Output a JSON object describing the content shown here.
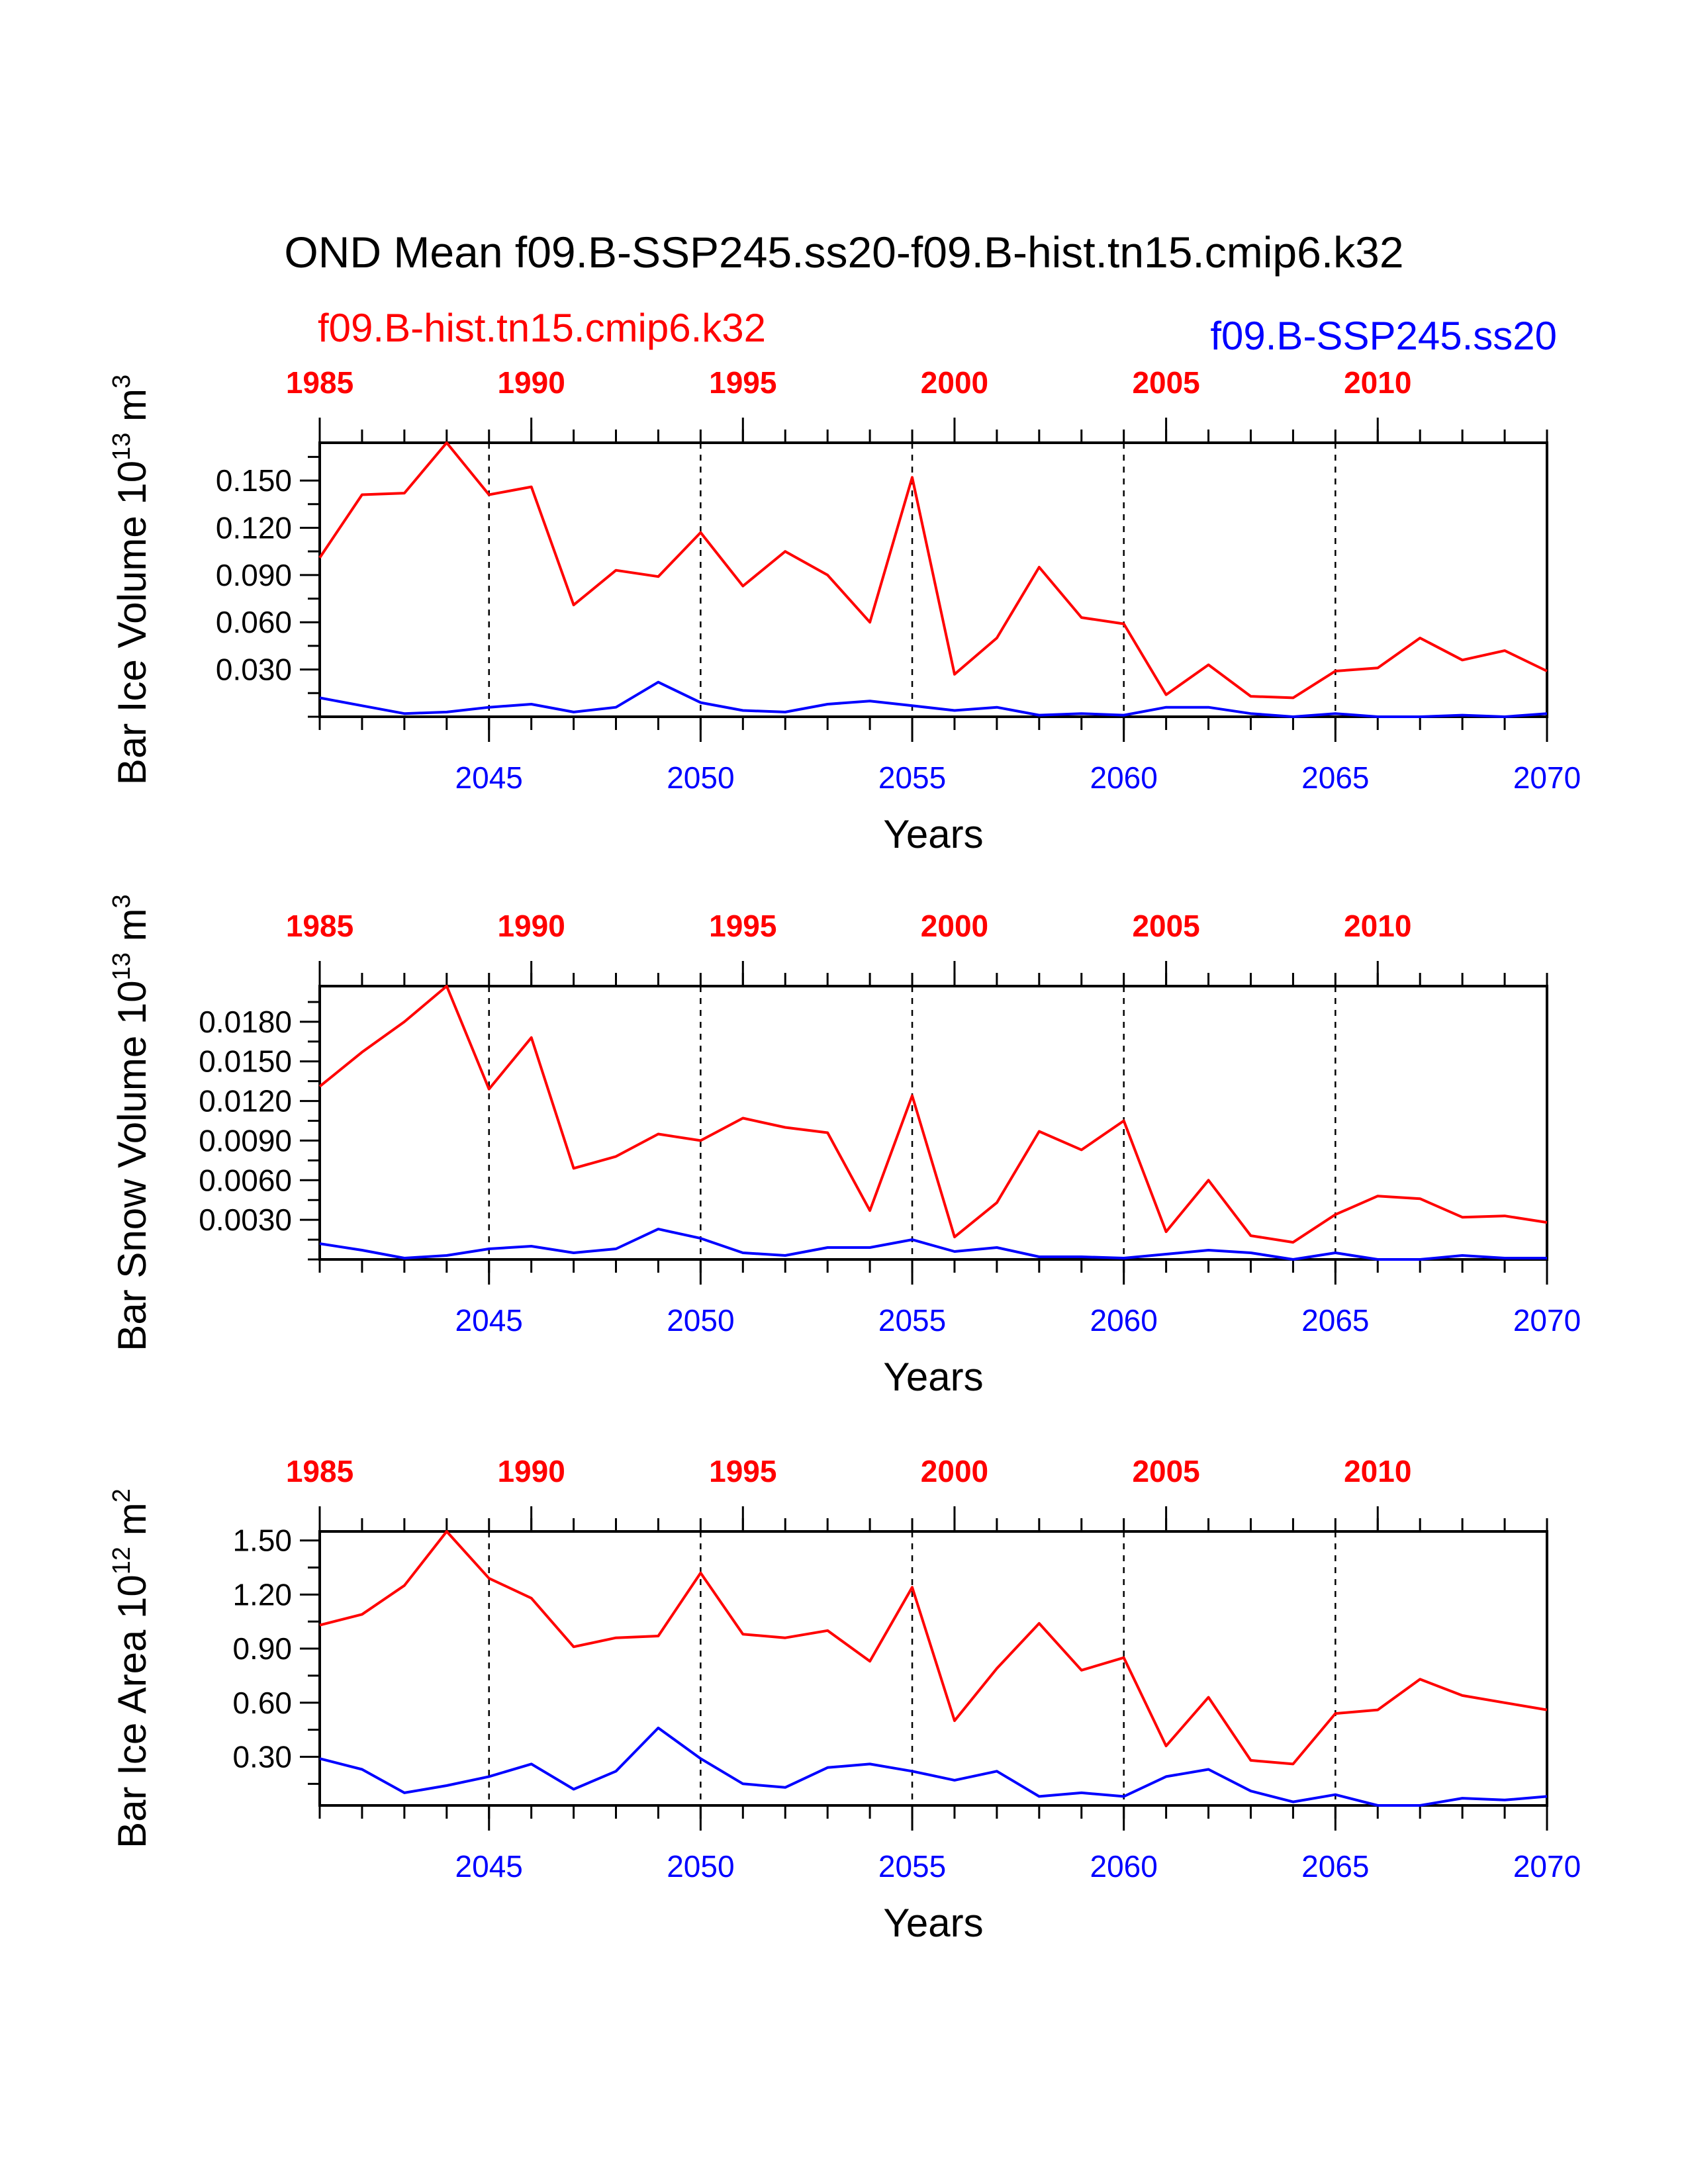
{
  "title": "OND Mean f09.B-SSP245.ss20-f09.B-hist.tn15.cmip6.k32",
  "legend": {
    "hist_label": "f09.B-hist.tn15.cmip6.k32",
    "ssp_label": "f09.B-SSP245.ss20"
  },
  "colors": {
    "hist": "#ff0000",
    "ssp": "#0000ff",
    "axis": "#000000"
  },
  "chart_data": [
    {
      "type": "line",
      "ylabel": "Bar Ice Volume 10",
      "ylabel_exp": "13",
      "ylabel_unit": " m",
      "ylabel_unit_exp": "3",
      "xlabel": "Years",
      "ylim": [
        0,
        0.174
      ],
      "yticks": [
        0.03,
        0.06,
        0.09,
        0.12,
        0.15
      ],
      "ytick_labels": [
        "0.030",
        "0.060",
        "0.090",
        "0.120",
        "0.150"
      ],
      "grid": "dashed vertical at every 5 years",
      "x_bottom": [
        2041,
        2042,
        2043,
        2044,
        2045,
        2046,
        2047,
        2048,
        2049,
        2050,
        2051,
        2052,
        2053,
        2054,
        2055,
        2056,
        2057,
        2058,
        2059,
        2060,
        2061,
        2062,
        2063,
        2064,
        2065,
        2066,
        2067,
        2068,
        2069,
        2070
      ],
      "x_top": [
        1985,
        1986,
        1987,
        1988,
        1989,
        1990,
        1991,
        1992,
        1993,
        1994,
        1995,
        1996,
        1997,
        1998,
        1999,
        2000,
        2001,
        2002,
        2003,
        2004,
        2005,
        2006,
        2007,
        2008,
        2009,
        2010,
        2011,
        2012,
        2013,
        2014
      ],
      "bottom_ticks": [
        2045,
        2050,
        2055,
        2060,
        2065,
        2070
      ],
      "top_ticks": [
        1985,
        1990,
        1995,
        2000,
        2005,
        2010
      ],
      "series": [
        {
          "name": "f09.B-hist.tn15.cmip6.k32",
          "color": "#ff0000",
          "values": [
            0.101,
            0.141,
            0.142,
            0.174,
            0.141,
            0.146,
            0.071,
            0.093,
            0.089,
            0.117,
            0.083,
            0.105,
            0.09,
            0.06,
            0.152,
            0.027,
            0.05,
            0.095,
            0.063,
            0.059,
            0.014,
            0.033,
            0.013,
            0.012,
            0.029,
            0.031,
            0.05,
            0.036,
            0.042,
            0.029
          ]
        },
        {
          "name": "f09.B-SSP245.ss20",
          "color": "#0000ff",
          "values": [
            0.012,
            0.007,
            0.002,
            0.003,
            0.006,
            0.008,
            0.003,
            0.006,
            0.022,
            0.009,
            0.004,
            0.003,
            0.008,
            0.01,
            0.007,
            0.004,
            0.006,
            0.001,
            0.002,
            0.001,
            0.006,
            0.006,
            0.002,
            0.0,
            0.002,
            0.0,
            0.0,
            0.001,
            0.0,
            0.002
          ]
        }
      ]
    },
    {
      "type": "line",
      "ylabel": "Bar Snow Volume 10",
      "ylabel_exp": "13",
      "ylabel_unit": " m",
      "ylabel_unit_exp": "3",
      "xlabel": "Years",
      "ylim": [
        0,
        0.0207
      ],
      "yticks": [
        0.003,
        0.006,
        0.009,
        0.012,
        0.015,
        0.018
      ],
      "ytick_labels": [
        "0.0030",
        "0.0060",
        "0.0090",
        "0.0120",
        "0.0150",
        "0.0180"
      ],
      "grid": "dashed vertical at every 5 years",
      "x_bottom": [
        2041,
        2042,
        2043,
        2044,
        2045,
        2046,
        2047,
        2048,
        2049,
        2050,
        2051,
        2052,
        2053,
        2054,
        2055,
        2056,
        2057,
        2058,
        2059,
        2060,
        2061,
        2062,
        2063,
        2064,
        2065,
        2066,
        2067,
        2068,
        2069,
        2070
      ],
      "x_top": [
        1985,
        1986,
        1987,
        1988,
        1989,
        1990,
        1991,
        1992,
        1993,
        1994,
        1995,
        1996,
        1997,
        1998,
        1999,
        2000,
        2001,
        2002,
        2003,
        2004,
        2005,
        2006,
        2007,
        2008,
        2009,
        2010,
        2011,
        2012,
        2013,
        2014
      ],
      "bottom_ticks": [
        2045,
        2050,
        2055,
        2060,
        2065,
        2070
      ],
      "top_ticks": [
        1985,
        1990,
        1995,
        2000,
        2005,
        2010
      ],
      "series": [
        {
          "name": "f09.B-hist.tn15.cmip6.k32",
          "color": "#ff0000",
          "values": [
            0.0131,
            0.0157,
            0.018,
            0.0207,
            0.0129,
            0.0168,
            0.0069,
            0.0078,
            0.0095,
            0.009,
            0.0107,
            0.01,
            0.0096,
            0.0037,
            0.0124,
            0.0017,
            0.0043,
            0.0097,
            0.0083,
            0.0105,
            0.0021,
            0.006,
            0.0018,
            0.0013,
            0.0034,
            0.0048,
            0.0046,
            0.0032,
            0.0033,
            0.0028
          ]
        },
        {
          "name": "f09.B-SSP245.ss20",
          "color": "#0000ff",
          "values": [
            0.0012,
            0.0007,
            0.0001,
            0.0003,
            0.0008,
            0.001,
            0.0005,
            0.0008,
            0.0023,
            0.0016,
            0.0005,
            0.0003,
            0.0009,
            0.0009,
            0.0015,
            0.0006,
            0.0009,
            0.0002,
            0.0002,
            0.0001,
            0.0004,
            0.0007,
            0.0005,
            0.0,
            0.0005,
            0.0,
            0.0,
            0.0003,
            0.0001,
            0.0001
          ]
        }
      ]
    },
    {
      "type": "line",
      "ylabel": "Bar Ice Area 10",
      "ylabel_exp": "12",
      "ylabel_unit": " m",
      "ylabel_unit_exp": "2",
      "xlabel": "Years",
      "ylim": [
        0.03,
        1.55
      ],
      "yticks": [
        0.3,
        0.6,
        0.9,
        1.2,
        1.5
      ],
      "ytick_labels": [
        "0.30",
        "0.60",
        "0.90",
        "1.20",
        "1.50"
      ],
      "grid": "dashed vertical at every 5 years",
      "x_bottom": [
        2041,
        2042,
        2043,
        2044,
        2045,
        2046,
        2047,
        2048,
        2049,
        2050,
        2051,
        2052,
        2053,
        2054,
        2055,
        2056,
        2057,
        2058,
        2059,
        2060,
        2061,
        2062,
        2063,
        2064,
        2065,
        2066,
        2067,
        2068,
        2069,
        2070
      ],
      "x_top": [
        1985,
        1986,
        1987,
        1988,
        1989,
        1990,
        1991,
        1992,
        1993,
        1994,
        1995,
        1996,
        1997,
        1998,
        1999,
        2000,
        2001,
        2002,
        2003,
        2004,
        2005,
        2006,
        2007,
        2008,
        2009,
        2010,
        2011,
        2012,
        2013,
        2014
      ],
      "bottom_ticks": [
        2045,
        2050,
        2055,
        2060,
        2065,
        2070
      ],
      "top_ticks": [
        1985,
        1990,
        1995,
        2000,
        2005,
        2010
      ],
      "series": [
        {
          "name": "f09.B-hist.tn15.cmip6.k32",
          "color": "#ff0000",
          "values": [
            1.03,
            1.09,
            1.25,
            1.55,
            1.29,
            1.18,
            0.91,
            0.96,
            0.97,
            1.32,
            0.98,
            0.96,
            1.0,
            0.83,
            1.24,
            0.5,
            0.79,
            1.04,
            0.78,
            0.85,
            0.36,
            0.63,
            0.28,
            0.26,
            0.54,
            0.56,
            0.73,
            0.64,
            0.6,
            0.56
          ]
        },
        {
          "name": "f09.B-SSP245.ss20",
          "color": "#0000ff",
          "values": [
            0.29,
            0.23,
            0.1,
            0.14,
            0.19,
            0.26,
            0.12,
            0.22,
            0.46,
            0.29,
            0.15,
            0.13,
            0.24,
            0.26,
            0.22,
            0.17,
            0.22,
            0.08,
            0.1,
            0.08,
            0.19,
            0.23,
            0.11,
            0.05,
            0.09,
            0.03,
            0.03,
            0.07,
            0.06,
            0.08
          ]
        }
      ]
    }
  ]
}
